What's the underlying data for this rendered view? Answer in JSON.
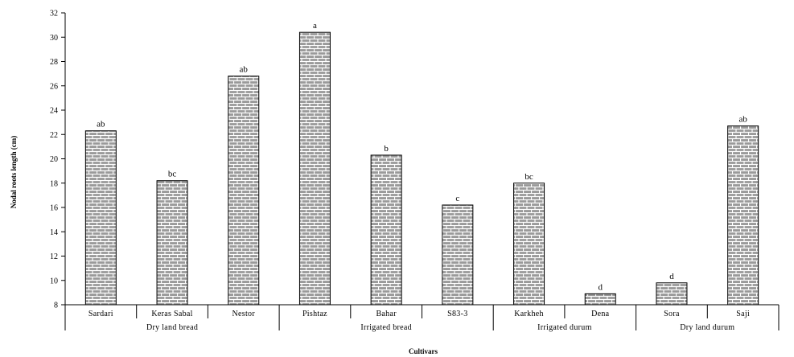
{
  "chart_data": {
    "type": "bar",
    "xlabel": "Cultivars",
    "ylabel": "Nodal roots length (cm)",
    "ylim": [
      8,
      32
    ],
    "yticks": [
      8,
      10,
      12,
      14,
      16,
      18,
      20,
      22,
      24,
      26,
      28,
      30,
      32
    ],
    "grid": false,
    "categories": [
      "Sardari",
      "Keras Sabal",
      "Nestor",
      "Pishtaz",
      "Bahar",
      "S83-3",
      "Karkheh",
      "Dena",
      "Sora",
      "Saji"
    ],
    "values": [
      22.3,
      18.2,
      26.8,
      30.4,
      20.3,
      16.2,
      18.0,
      8.9,
      9.8,
      22.7
    ],
    "data_labels": [
      "ab",
      "bc",
      "ab",
      "a",
      "b",
      "c",
      "bc",
      "d",
      "d",
      "ab"
    ],
    "groups": [
      {
        "name": "Dry land bread",
        "categories": [
          "Sardari",
          "Keras Sabal",
          "Nestor"
        ]
      },
      {
        "name": "Irrigated bread",
        "categories": [
          "Pishtaz",
          "Bahar",
          "S83-3"
        ]
      },
      {
        "name": "Irrigated durum",
        "categories": [
          "Karkheh",
          "Dena"
        ]
      },
      {
        "name": "Dry land durum",
        "categories": [
          "Sora",
          "Saji"
        ]
      }
    ],
    "bar_pattern": "brick",
    "bar_fill_color": "#9a9a9a",
    "bar_line_color": "#ffffff",
    "axis_color": "#000000"
  }
}
